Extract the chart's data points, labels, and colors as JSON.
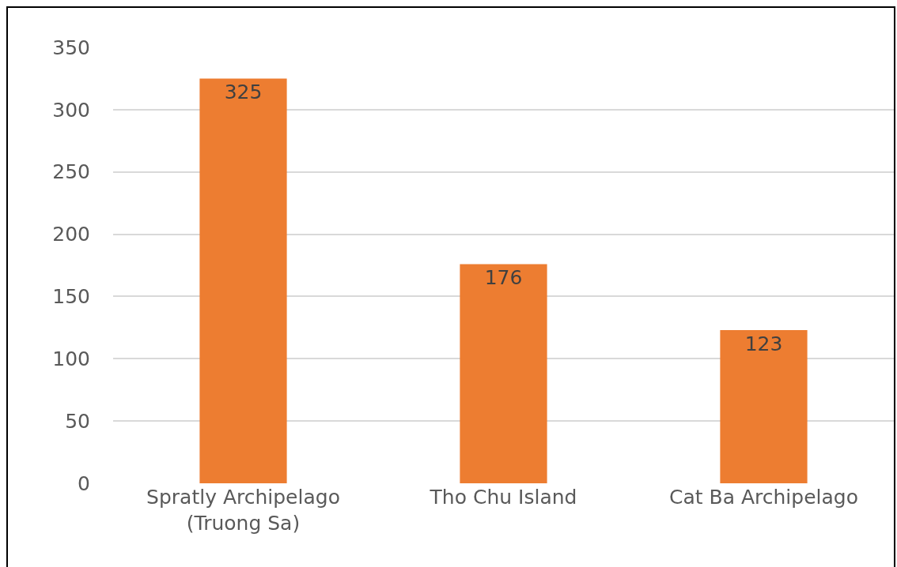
{
  "chart_data": {
    "type": "bar",
    "categories": [
      "Spratly Archipelago\n(Truong Sa)",
      "Tho Chu Island",
      "Cat Ba Archipelago"
    ],
    "values": [
      325,
      176,
      123
    ],
    "color": "#ed7d31",
    "ylim": [
      0,
      350
    ],
    "yticks": [
      0,
      50,
      100,
      150,
      200,
      250,
      300,
      350
    ],
    "grid": "y",
    "data_labels": true,
    "legend": false
  }
}
